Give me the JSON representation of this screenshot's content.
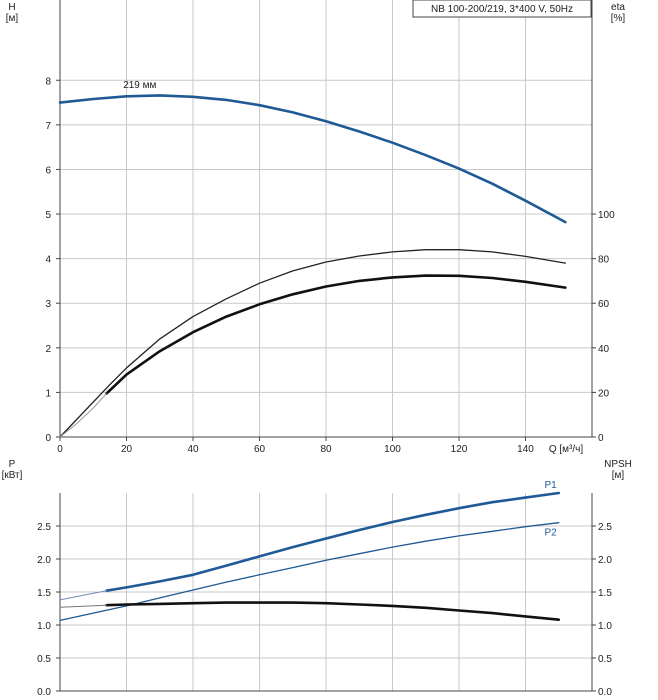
{
  "chart_data": [
    {
      "type": "line",
      "title": "NB 100-200/219, 3*400 V, 50Hz",
      "xlabel": "Q [м³/ч]",
      "xlim": [
        0,
        160
      ],
      "xticks": [
        0,
        20,
        40,
        60,
        80,
        100,
        120,
        140
      ],
      "ylabel_left": "H\n[м]",
      "ylim_left": [
        0,
        9.8
      ],
      "yticks_left": [
        0,
        1,
        2,
        3,
        4,
        5,
        6,
        7,
        8
      ],
      "ylabel_right": "eta\n[%]",
      "ylim_right": [
        0,
        196
      ],
      "yticks_right": [
        0,
        20,
        40,
        60,
        80,
        100
      ],
      "grid": true,
      "series": [
        {
          "key": "head",
          "axis": "left",
          "color": "#1f5a96",
          "width": 2.6,
          "x": [
            0,
            10,
            20,
            30,
            40,
            50,
            60,
            70,
            80,
            90,
            100,
            110,
            120,
            130,
            140,
            152
          ],
          "y": [
            7.5,
            7.58,
            7.64,
            7.66,
            7.63,
            7.56,
            7.44,
            7.28,
            7.08,
            6.85,
            6.6,
            6.32,
            6.02,
            5.68,
            5.3,
            4.82
          ]
        },
        {
          "key": "eta-thin",
          "axis": "right",
          "color": "#222222",
          "width": 1.3,
          "x": [
            0,
            15,
            20,
            30,
            40,
            50,
            60,
            70,
            80,
            90,
            100,
            110,
            120,
            130,
            140,
            152
          ],
          "y": [
            0,
            23.5,
            31,
            44,
            54,
            62,
            69,
            74.5,
            78.5,
            81.2,
            83,
            84,
            84,
            83,
            81,
            78
          ]
        },
        {
          "key": "eta-bold",
          "axis": "right",
          "color": "#111111",
          "width": 2.6,
          "x": [
            14,
            20,
            30,
            40,
            50,
            60,
            70,
            80,
            90,
            100,
            110,
            120,
            130,
            140,
            152
          ],
          "y": [
            19.5,
            28,
            38.5,
            47,
            54,
            59.5,
            64,
            67.5,
            70,
            71.6,
            72.4,
            72.3,
            71.3,
            69.6,
            67
          ]
        },
        {
          "key": "eta-ext",
          "axis": "right",
          "color": "#999999",
          "width": 1,
          "x": [
            0,
            5,
            10,
            14
          ],
          "y": [
            0,
            6,
            13,
            19.5
          ]
        }
      ],
      "annotations": [
        {
          "text": "219 мм",
          "x": 24,
          "y": 7.8,
          "axis": "left"
        }
      ]
    },
    {
      "type": "line",
      "xlim": [
        0,
        160
      ],
      "ylabel_left": "P\n[кВт]",
      "ylim_left": [
        0,
        3.0
      ],
      "yticks_left": [
        "0.0",
        "0.5",
        "1.0",
        "1.5",
        "2.0",
        "2.5"
      ],
      "ylabel_right": "NPSH\n[м]",
      "ylim_right": [
        0,
        3.0
      ],
      "yticks_right": [
        "0.0",
        "0.5",
        "1.0",
        "1.5",
        "2.0",
        "2.5"
      ],
      "grid": true,
      "series": [
        {
          "key": "P1",
          "name": "P1",
          "axis": "left",
          "color": "#1f5a96",
          "width": 2.6,
          "x": [
            14,
            20,
            30,
            40,
            50,
            60,
            70,
            80,
            90,
            100,
            110,
            120,
            130,
            140,
            150
          ],
          "y": [
            1.52,
            1.57,
            1.66,
            1.76,
            1.9,
            2.04,
            2.18,
            2.31,
            2.44,
            2.56,
            2.67,
            2.77,
            2.86,
            2.93,
            3.0
          ]
        },
        {
          "key": "P2",
          "name": "P2",
          "axis": "left",
          "color": "#1f5a96",
          "width": 1.3,
          "x": [
            0,
            10,
            20,
            30,
            40,
            50,
            60,
            70,
            80,
            90,
            100,
            110,
            120,
            130,
            140,
            150
          ],
          "y": [
            1.07,
            1.18,
            1.29,
            1.41,
            1.53,
            1.65,
            1.76,
            1.87,
            1.98,
            2.08,
            2.18,
            2.27,
            2.35,
            2.42,
            2.49,
            2.55
          ]
        },
        {
          "key": "P1-ext",
          "axis": "left",
          "color": "#6f8fb5",
          "width": 1,
          "x": [
            0,
            7,
            14
          ],
          "y": [
            1.38,
            1.45,
            1.52
          ]
        },
        {
          "key": "NPSH",
          "axis": "right",
          "color": "#111111",
          "width": 2.6,
          "x": [
            14,
            20,
            30,
            40,
            50,
            60,
            70,
            80,
            90,
            100,
            110,
            120,
            130,
            140,
            150
          ],
          "y": [
            1.3,
            1.31,
            1.32,
            1.33,
            1.34,
            1.34,
            1.34,
            1.33,
            1.31,
            1.29,
            1.26,
            1.22,
            1.18,
            1.13,
            1.08
          ]
        },
        {
          "key": "NPSH-ext",
          "axis": "right",
          "color": "#777777",
          "width": 1,
          "x": [
            0,
            14
          ],
          "y": [
            1.27,
            1.3
          ]
        }
      ]
    }
  ]
}
